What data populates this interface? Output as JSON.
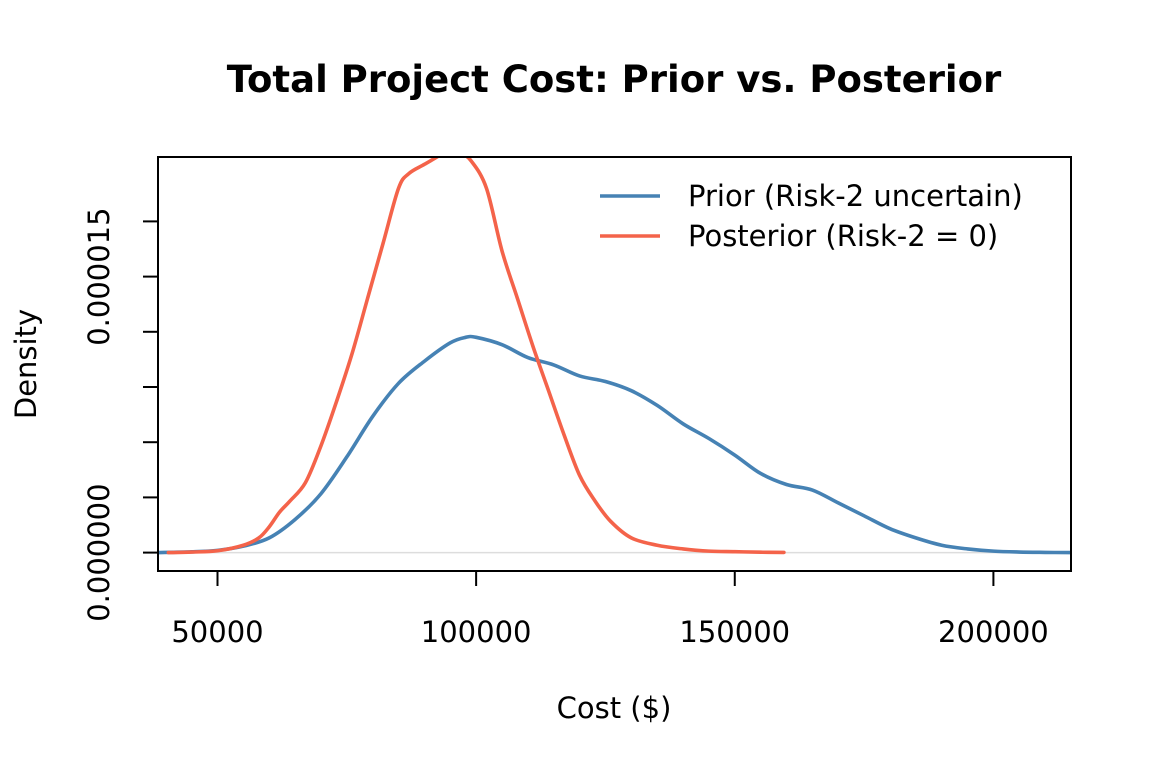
{
  "chart_data": {
    "type": "line",
    "title": "Total Project Cost: Prior vs. Posterior",
    "xlabel": "Cost ($)",
    "ylabel": "Density",
    "xlim": [
      38500,
      215000
    ],
    "ylim": [
      -1e-06,
      2.15e-05
    ],
    "x_ticks": [
      50000,
      100000,
      150000,
      200000
    ],
    "x_tick_labels": [
      "50000",
      "100000",
      "150000",
      "200000"
    ],
    "y_ticks": [
      0,
      3e-06,
      6e-06,
      9e-06,
      1.2e-05,
      1.5e-05,
      1.8e-05
    ],
    "y_tick_labels": [
      {
        "value": 0,
        "label": "0.000000"
      },
      {
        "value": 1.5e-05,
        "label": "0.000015"
      }
    ],
    "grid": false,
    "zero_line": true,
    "legend_position": "top-right",
    "series": [
      {
        "name": "Prior (Risk-2 uncertain)",
        "color": "#4682B4",
        "x": [
          38500,
          45000,
          50000,
          55000,
          60000,
          65000,
          70000,
          75000,
          80000,
          85000,
          90000,
          95000,
          98000,
          100000,
          105000,
          110000,
          115000,
          120000,
          125000,
          130000,
          135000,
          140000,
          145000,
          150000,
          155000,
          160000,
          165000,
          170000,
          175000,
          180000,
          185000,
          190000,
          195000,
          200000,
          205000,
          210000,
          215000
        ],
        "y": [
          0,
          4e-08,
          1.2e-07,
          3.5e-07,
          8e-07,
          1.8e-06,
          3.2e-06,
          5.2e-06,
          7.4e-06,
          9.2e-06,
          1.04e-05,
          1.14e-05,
          1.17e-05,
          1.17e-05,
          1.13e-05,
          1.06e-05,
          1.02e-05,
          9.6e-06,
          9.3e-06,
          8.8e-06,
          8e-06,
          7e-06,
          6.2e-06,
          5.3e-06,
          4.3e-06,
          3.7e-06,
          3.4e-06,
          2.7e-06,
          2e-06,
          1.3e-06,
          8e-07,
          4e-07,
          2e-07,
          8e-08,
          3e-08,
          1e-08,
          0
        ]
      },
      {
        "name": "Posterior (Risk-2 = 0)",
        "color": "#F4634A",
        "x": [
          40500,
          45000,
          50000,
          55000,
          58000,
          60000,
          62000,
          64000,
          67000,
          70000,
          73000,
          76000,
          79000,
          82000,
          85000,
          87000,
          90000,
          93000,
          95000,
          97000,
          99000,
          102000,
          105000,
          108000,
          111000,
          114000,
          117000,
          120000,
          123000,
          126000,
          130000,
          135000,
          140000,
          145000,
          150000,
          155000,
          159500
        ],
        "y": [
          0,
          3e-08,
          1e-07,
          4e-07,
          8e-07,
          1.4e-06,
          2.2e-06,
          2.8e-06,
          3.8e-06,
          5.8e-06,
          8.2e-06,
          1.08e-05,
          1.38e-05,
          1.68e-05,
          1.98e-05,
          2.06e-05,
          2.11e-05,
          2.16e-05,
          2.2e-05,
          2.17e-05,
          2.13e-05,
          1.98e-05,
          1.64e-05,
          1.38e-05,
          1.12e-05,
          8.8e-06,
          6.4e-06,
          4.2e-06,
          2.8e-06,
          1.7e-06,
          8e-07,
          4e-07,
          2e-07,
          8e-08,
          5e-08,
          2e-08,
          1e-08
        ]
      }
    ]
  }
}
